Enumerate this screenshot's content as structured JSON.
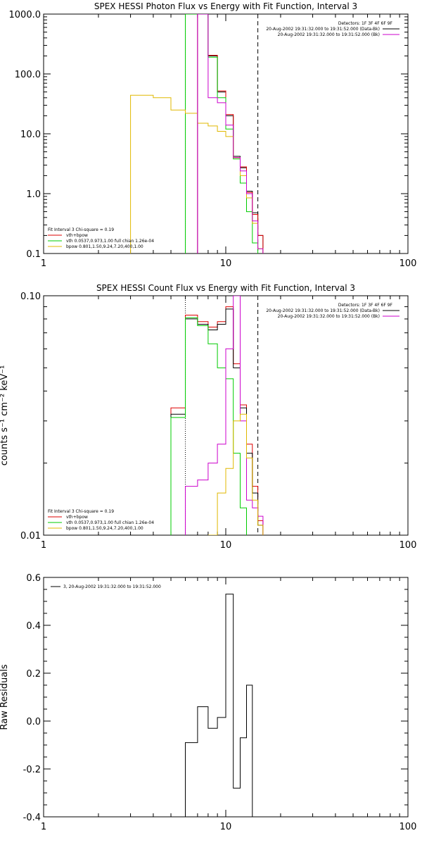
{
  "colors": {
    "data": "#000000",
    "model": "#dd0000",
    "vth": "#00cc00",
    "bpow": "#e0b800",
    "int": "#cc00cc",
    "axis": "#000000"
  },
  "chart_data": [
    {
      "type": "line",
      "title": "SPEX HESSI Photon Flux vs Energy with Fit Function, Interval 3",
      "xlabel": "",
      "ylabel": "",
      "xscale": "log",
      "yscale": "log",
      "xlim": [
        1,
        100
      ],
      "ylim": [
        0.1,
        1000
      ],
      "x_ticks": [
        "1",
        "10",
        "100"
      ],
      "y_ticks": [
        "0.1",
        "1.0",
        "10.0",
        "100.0",
        "1000.0"
      ],
      "header": [
        "Detectors: 1F 3F 4F 6F 9F",
        "20-Aug-2002 19:31:32.000 to 19:31:52.000 (Data-Bk)",
        "20-Aug-2002 19:31:32.000 to 19:31:52.000 (Bk)"
      ],
      "legend": [
        "Fit Interval  3   Chi-square = 0.19",
        "vth+bpow",
        "vth 0.0537,0.973,1.00  full chian 1.26e-04",
        "bpow 0.801,1.50,9.24,7.20,400,1.00"
      ],
      "vertical_lines": [
        6,
        15
      ],
      "bin_edges": [
        3,
        4,
        5,
        6,
        7,
        8,
        9,
        10,
        11,
        12,
        13,
        14,
        15,
        16,
        17
      ],
      "series": [
        {
          "key": "data",
          "values": [
            null,
            null,
            null,
            null,
            1000,
            200,
            50,
            20,
            4.2,
            2.7,
            1.1,
            0.48,
            0.2,
            null
          ]
        },
        {
          "key": "model",
          "values": [
            null,
            null,
            null,
            null,
            1000,
            205,
            52,
            21,
            4.0,
            2.8,
            1.05,
            0.45,
            0.2,
            null
          ]
        },
        {
          "key": "vth",
          "values": [
            null,
            null,
            null,
            1000,
            1000,
            190,
            40,
            12,
            3.8,
            1.5,
            0.5,
            0.15,
            null,
            null
          ]
        },
        {
          "key": "bpow",
          "values": [
            44,
            40,
            25,
            22,
            15,
            13.5,
            11,
            9,
            4.0,
            2.0,
            0.85,
            0.32,
            0.12,
            null
          ]
        },
        {
          "key": "int",
          "values": [
            null,
            null,
            null,
            null,
            1000,
            40,
            33,
            14,
            4.0,
            2.4,
            1.0,
            0.35,
            0.12,
            null
          ]
        }
      ]
    },
    {
      "type": "line",
      "title": "SPEX HESSI Count Flux vs Energy with Fit Function, Interval 3",
      "xlabel": "",
      "ylabel": "counts s⁻¹ cm⁻² keV⁻¹",
      "xscale": "log",
      "yscale": "log",
      "xlim": [
        1,
        100
      ],
      "ylim": [
        0.01,
        0.1
      ],
      "x_ticks": [
        "1",
        "10",
        "100"
      ],
      "y_ticks": [
        "0.01",
        "0.10"
      ],
      "header": [
        "Detectors: 1F 3F 4F 6F 9F",
        "20-Aug-2002 19:31:32.000 to 19:31:52.000 (Data-Bk)",
        "20-Aug-2002 19:31:32.000 to 19:31:52.000 (Bk)"
      ],
      "legend": [
        "Fit Interval  3   Chi-square = 0.19",
        "vth+bpow",
        "vth 0.0537,0.973,1.00  full chian 1.26e-04",
        "bpow 0.801,1.50,9.24,7.20,400,1.00"
      ],
      "vertical_lines": [
        6,
        15
      ],
      "bin_edges": [
        5,
        6,
        7,
        8,
        9,
        10,
        11,
        12,
        13,
        14,
        15,
        16,
        17
      ],
      "series": [
        {
          "key": "model",
          "values": [
            0.034,
            0.083,
            0.078,
            0.074,
            0.078,
            0.09,
            0.052,
            0.035,
            0.024,
            0.016,
            0.0115,
            null
          ]
        },
        {
          "key": "data",
          "values": [
            0.032,
            0.08,
            0.076,
            0.072,
            0.076,
            0.088,
            0.05,
            0.034,
            0.022,
            0.015,
            0.011,
            null
          ]
        },
        {
          "key": "vth",
          "values": [
            0.031,
            0.081,
            0.075,
            0.063,
            0.05,
            0.045,
            0.022,
            0.013,
            null,
            null,
            null,
            null
          ]
        },
        {
          "key": "int",
          "values": [
            null,
            0.016,
            0.017,
            0.02,
            0.024,
            0.06,
            0.1,
            0.03,
            0.014,
            0.013,
            0.012,
            null
          ]
        },
        {
          "key": "bpow",
          "values": [
            null,
            null,
            null,
            0.009,
            0.015,
            0.019,
            0.03,
            0.032,
            0.021,
            0.014,
            0.011,
            null
          ]
        }
      ]
    },
    {
      "type": "line",
      "title": "",
      "xlabel": "",
      "ylabel": "Raw Residuals",
      "xscale": "log",
      "yscale": "linear",
      "xlim": [
        1,
        100
      ],
      "ylim": [
        -0.4,
        0.6
      ],
      "x_ticks": [
        "1",
        "10",
        "100"
      ],
      "y_ticks": [
        "-0.4",
        "-0.2",
        "0.0",
        "0.2",
        "0.4",
        "0.6"
      ],
      "legend": [
        "3, 20-Aug-2002 19:31:32.000 to 19:31:52.000"
      ],
      "bin_edges": [
        6,
        7,
        8,
        9,
        10,
        11,
        12,
        13,
        14,
        15
      ],
      "series": [
        {
          "key": "data",
          "values": [
            -0.09,
            0.06,
            -0.03,
            0.015,
            0.53,
            -0.28,
            -0.07,
            0.15,
            null
          ]
        }
      ]
    }
  ]
}
